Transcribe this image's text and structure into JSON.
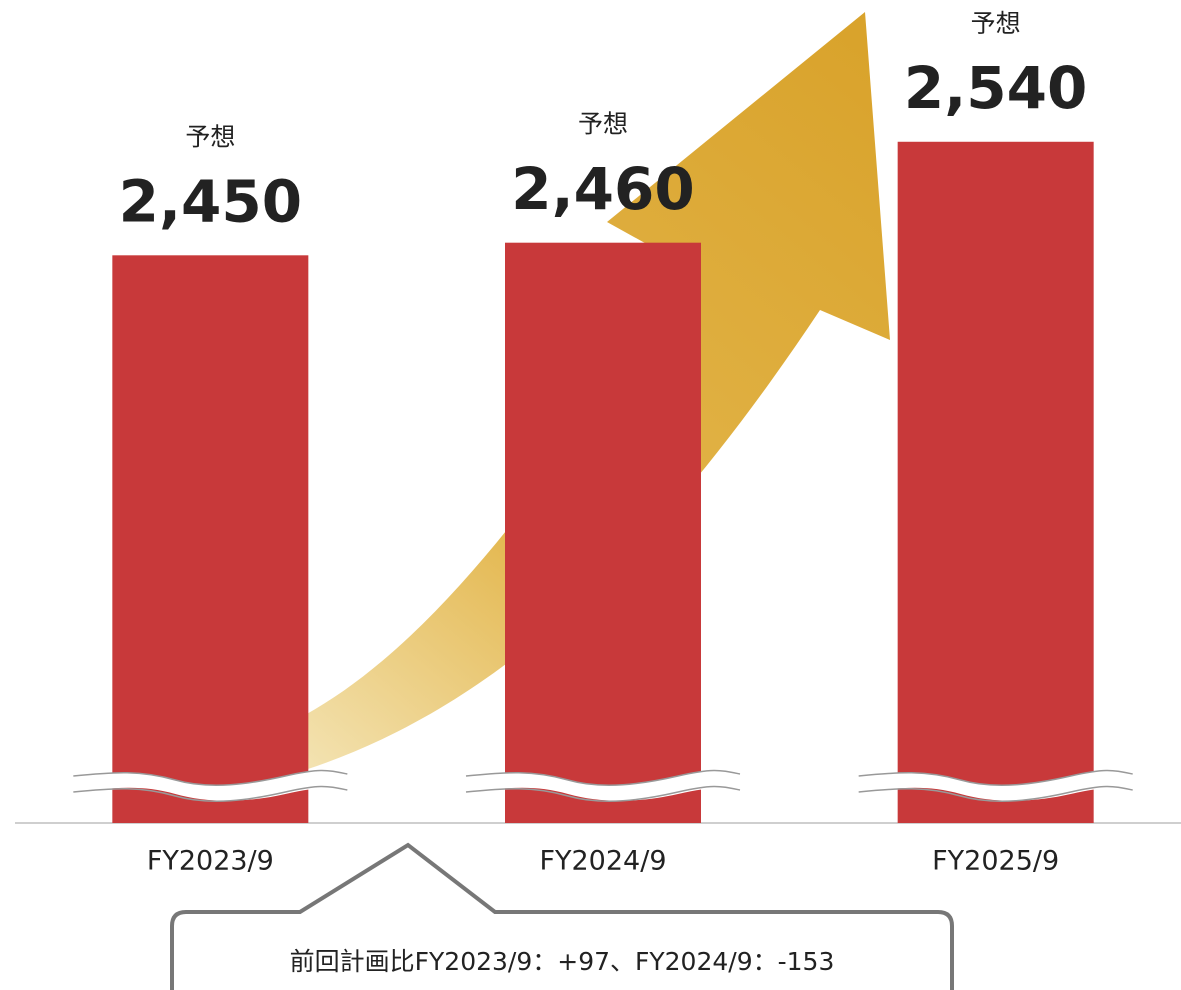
{
  "chart_data": {
    "type": "bar",
    "categories": [
      "FY2023/9",
      "FY2024/9",
      "FY2025/9"
    ],
    "values": [
      2450,
      2460,
      2540
    ],
    "value_labels": [
      "2,450",
      "2,460",
      "2,540"
    ],
    "value_notes": [
      "予想",
      "予想",
      "予想"
    ],
    "color": "#c8393a",
    "ylim": [
      2000,
      2650
    ],
    "note": "前回計画比FY2023/9：+97、FY2024/9：-153"
  }
}
